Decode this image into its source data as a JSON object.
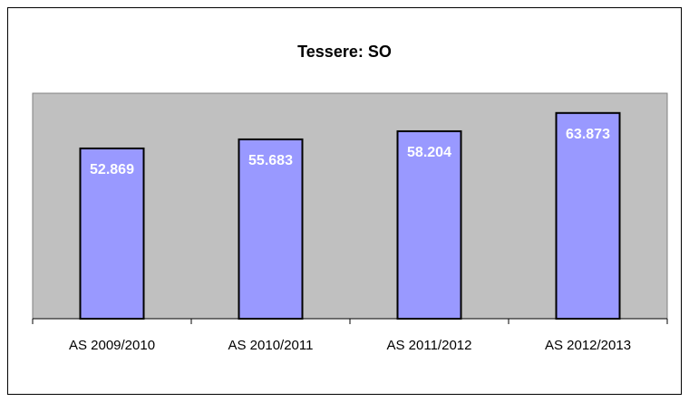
{
  "chart_data": {
    "type": "bar",
    "title": "Tessere: SO",
    "categories": [
      "AS 2009/2010",
      "AS 2010/2011",
      "AS 2011/2012",
      "AS 2012/2013"
    ],
    "values": [
      52869,
      55683,
      58204,
      63873
    ],
    "value_labels": [
      "52.869",
      "55.683",
      "58.204",
      "63.873"
    ],
    "color": "#9999ff",
    "ylim": [
      0,
      70000
    ]
  }
}
